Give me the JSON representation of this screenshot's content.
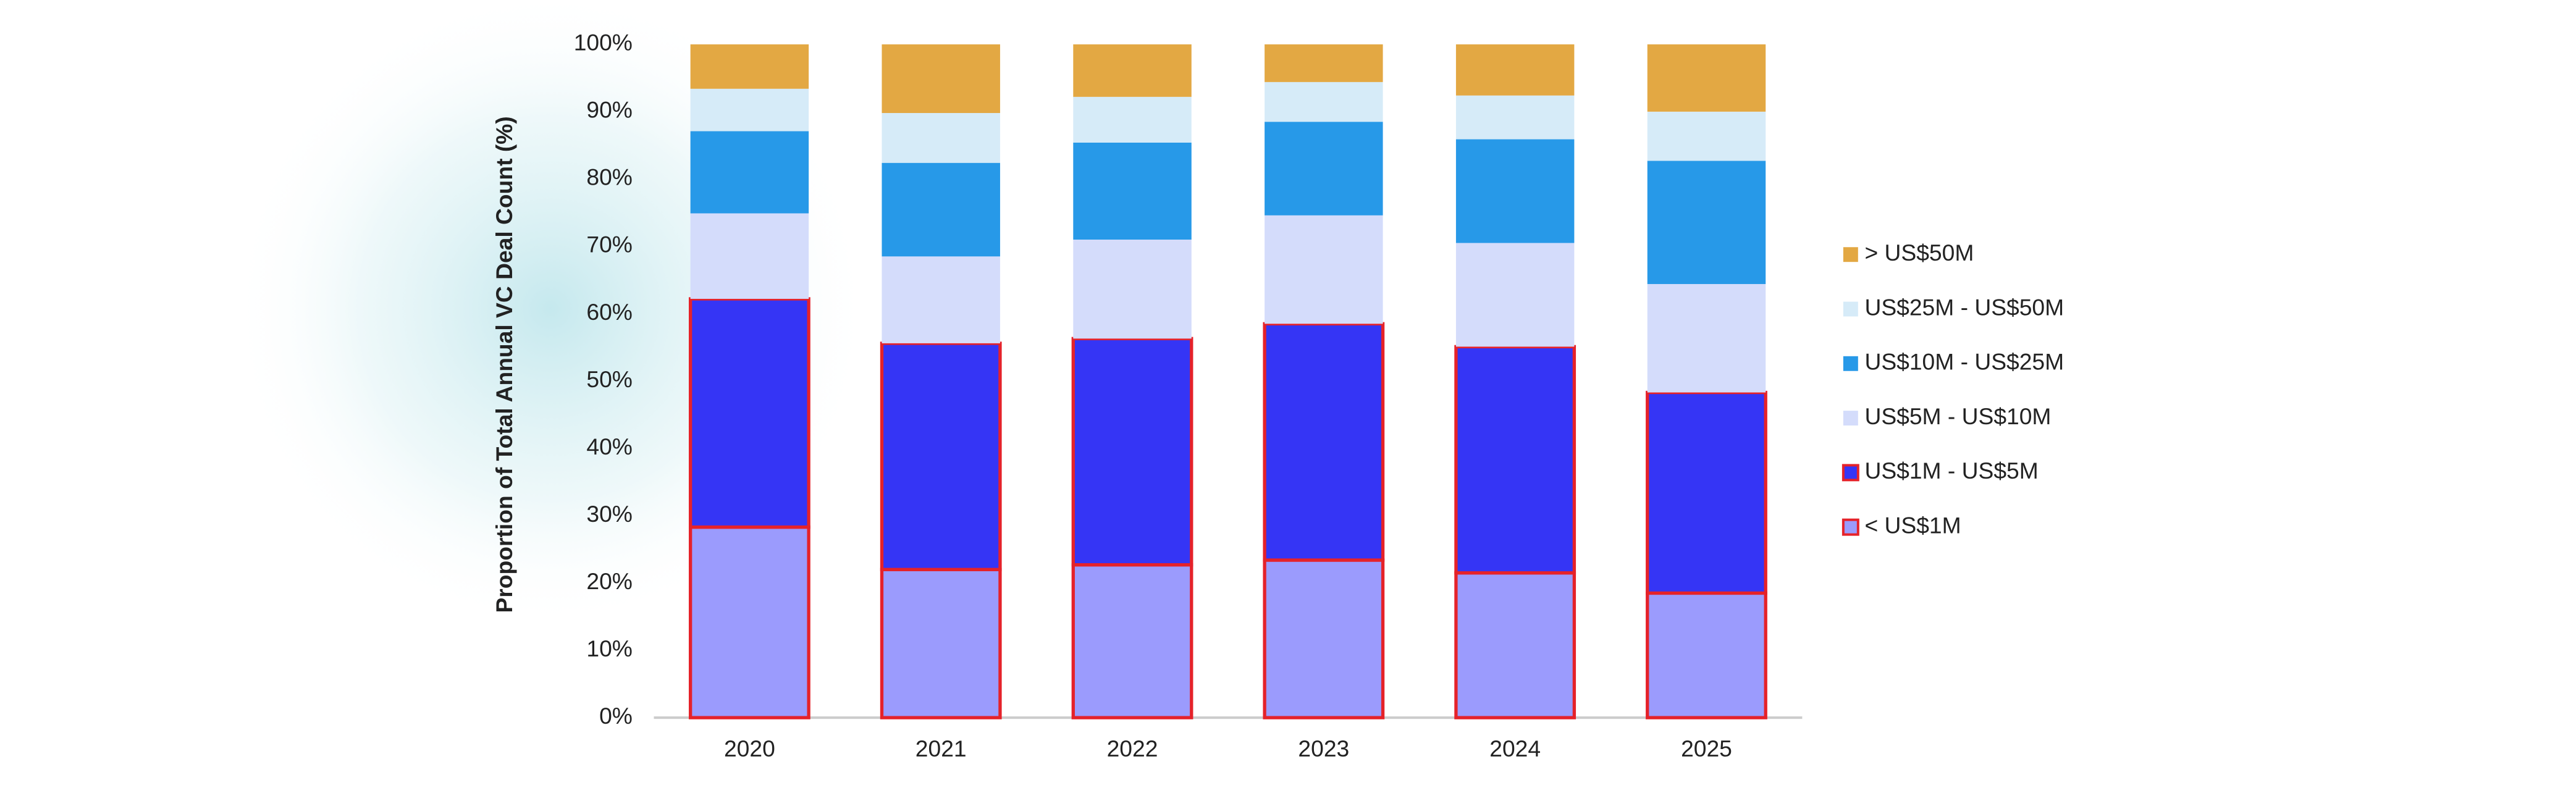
{
  "chart_data": {
    "type": "stacked_bar",
    "y_label": "Proportion of Total Annual VC Deal Count (%)",
    "categories": [
      "2020",
      "2021",
      "2022",
      "2023",
      "2024",
      "2025"
    ],
    "series": [
      {
        "name": "< US$1M",
        "color": "#9b9bfd",
        "outline": "#e5222a",
        "values": [
          28.3,
          22.0,
          22.7,
          23.4,
          21.5,
          18.5
        ]
      },
      {
        "name": "US$1M - US$5M",
        "color": "#3535f5",
        "outline": "#e5222a",
        "values": [
          33.9,
          33.6,
          33.6,
          35.1,
          33.6,
          29.8
        ]
      },
      {
        "name": "US$5M - US$10M",
        "color": "#d4dcfb",
        "values": [
          12.7,
          12.9,
          14.7,
          16.1,
          15.4,
          16.1
        ]
      },
      {
        "name": "US$10M - US$25M",
        "color": "#2799e8",
        "values": [
          12.2,
          13.9,
          14.4,
          13.9,
          15.4,
          18.3
        ]
      },
      {
        "name": "US$25M - US$50M",
        "color": "#d6ebf8",
        "values": [
          6.3,
          7.4,
          6.8,
          5.9,
          6.5,
          7.3
        ]
      },
      {
        "name": "> US$50M",
        "color": "#e3a843",
        "values": [
          6.6,
          10.2,
          7.8,
          5.6,
          7.6,
          10.0
        ]
      }
    ],
    "ylim": [
      0,
      100
    ],
    "yticks": [
      {
        "value": 0,
        "label": "0%"
      },
      {
        "value": 10,
        "label": "10%"
      },
      {
        "value": 20,
        "label": "20%"
      },
      {
        "value": 30,
        "label": "30%"
      },
      {
        "value": 40,
        "label": "40%"
      },
      {
        "value": 50,
        "label": "50%"
      },
      {
        "value": 60,
        "label": "60%"
      },
      {
        "value": 70,
        "label": "70%"
      },
      {
        "value": 80,
        "label": "80%"
      },
      {
        "value": 90,
        "label": "90%"
      },
      {
        "value": 100,
        "label": "100%"
      }
    ],
    "grid": false,
    "legend": "right"
  }
}
